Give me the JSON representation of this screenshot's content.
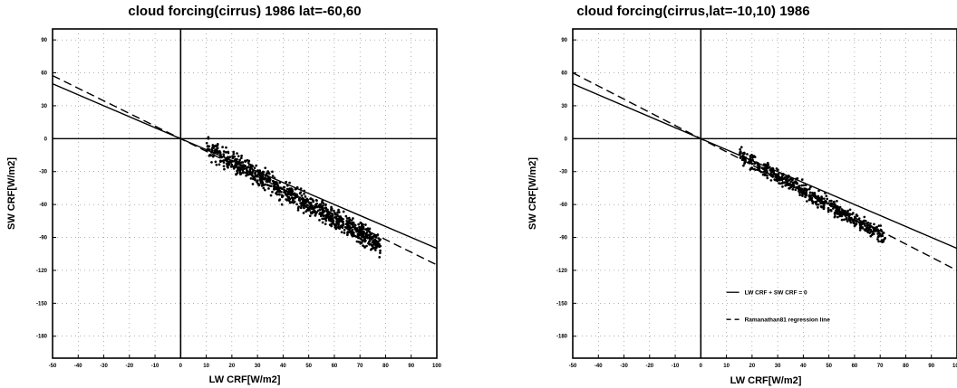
{
  "charts": [
    {
      "type": "scatter",
      "title": "cloud forcing(cirrus) 1986 lat=-60,60",
      "xlabel": "LW CRF[W/m2]",
      "ylabel": "SW CRF[W/m2]",
      "xlim": [
        -50,
        100
      ],
      "ylim": [
        -200,
        100
      ],
      "xticks": [
        -50,
        -40,
        -30,
        -20,
        -10,
        0,
        10,
        20,
        30,
        40,
        50,
        60,
        70,
        80,
        90,
        100
      ],
      "xtick_labels": [
        "-50",
        "-40",
        "-30",
        "-20",
        "-10",
        "0",
        "10",
        "20",
        "30",
        "40",
        "50",
        "60",
        "70",
        "80",
        "90",
        "100"
      ],
      "yticks": [
        90,
        60,
        30,
        0,
        -30,
        -60,
        -90,
        -120,
        -150,
        -180
      ],
      "ytick_labels": [
        "90",
        "60",
        "30",
        "0",
        "-30",
        "-60",
        "-90",
        "-120",
        "-150",
        "-180"
      ],
      "grid": true,
      "cloud": {
        "x_range": [
          10,
          78
        ],
        "y_at_x10": -8,
        "y_at_x78": -96,
        "spread": 8,
        "count": 900
      },
      "lines": [
        {
          "style": "solid",
          "slope": -1.0
        },
        {
          "style": "dashed",
          "slope": -1.15
        }
      ],
      "legend": []
    },
    {
      "type": "scatter",
      "title": "cloud forcing(cirrus,lat=-10,10) 1986",
      "xlabel": "LW CRF[W/m2]",
      "ylabel": "SW CRF[W/m2]",
      "xlim": [
        -50,
        100
      ],
      "ylim": [
        -200,
        100
      ],
      "xticks": [
        -50,
        -40,
        -30,
        -20,
        -10,
        0,
        10,
        20,
        30,
        40,
        50,
        60,
        70,
        80,
        90,
        100
      ],
      "xtick_labels": [
        "-50",
        "-40",
        "-30",
        "-20",
        "-10",
        "0",
        "10",
        "20",
        "30",
        "40",
        "50",
        "60",
        "70",
        "80",
        "90",
        "100"
      ],
      "yticks": [
        90,
        60,
        30,
        0,
        -30,
        -60,
        -90,
        -120,
        -150,
        -180
      ],
      "ytick_labels": [
        "90",
        "60",
        "30",
        "0",
        "-30",
        "-60",
        "-90",
        "-120",
        "-150",
        "-180"
      ],
      "grid": true,
      "cloud": {
        "x_range": [
          15,
          72
        ],
        "y_at_x10": -8,
        "y_at_x78": -98,
        "spread": 6,
        "count": 550
      },
      "lines": [
        {
          "style": "solid",
          "slope": -1.0
        },
        {
          "style": "dashed",
          "slope": -1.2
        }
      ],
      "legend": [
        {
          "style": "solid",
          "label": "LW CRF + SW CRF = 0"
        },
        {
          "style": "dashed",
          "label": "Ramanathan81 regression line"
        }
      ]
    }
  ],
  "chart_data": [
    {
      "type": "scatter",
      "title": "cloud forcing(cirrus) 1986 lat=-60,60",
      "xlabel": "LW CRF[W/m2]",
      "ylabel": "SW CRF[W/m2]",
      "xlim": [
        -50,
        100
      ],
      "ylim": [
        -200,
        100
      ],
      "grid": true,
      "series": [
        {
          "kind": "points",
          "x_range": [
            10,
            78
          ],
          "y_range": [
            -100,
            -5
          ]
        },
        {
          "kind": "line",
          "style": "solid",
          "slope": -1.0
        },
        {
          "kind": "line",
          "style": "dashed",
          "slope": -1.15
        }
      ]
    },
    {
      "type": "scatter",
      "title": "cloud forcing(cirrus,lat=-10,10) 1986",
      "xlabel": "LW CRF[W/m2]",
      "ylabel": "SW CRF[W/m2]",
      "xlim": [
        -50,
        100
      ],
      "ylim": [
        -200,
        100
      ],
      "grid": true,
      "legend_placement": "bottom-right",
      "series": [
        {
          "kind": "points",
          "x_range": [
            15,
            72
          ],
          "y_range": [
            -100,
            -10
          ]
        },
        {
          "kind": "line",
          "style": "solid",
          "slope": -1.0,
          "name": "LW CRF + SW CRF = 0"
        },
        {
          "kind": "line",
          "style": "dashed",
          "slope": -1.2,
          "name": "Ramanathan81 regression line"
        }
      ]
    }
  ]
}
